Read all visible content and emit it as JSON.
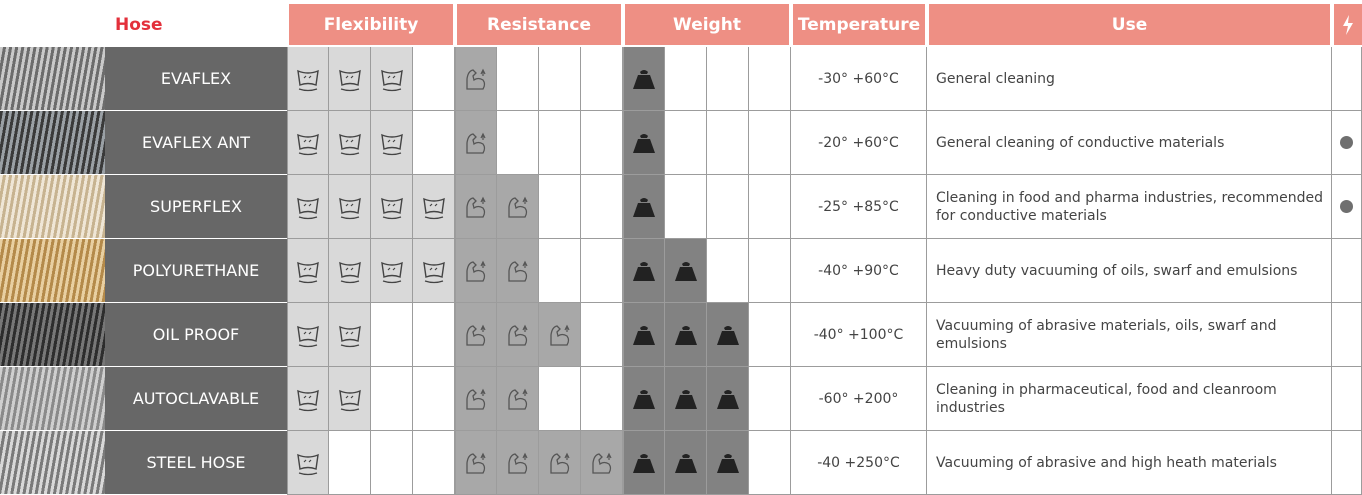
{
  "header": {
    "hose": "Hose",
    "flexibility": "Flexibility",
    "resistance": "Resistance",
    "weight": "Weight",
    "temperature": "Temperature",
    "use": "Use"
  },
  "rows": [
    {
      "name": "EVAFLEX",
      "flexibility": 3,
      "resistance": 1,
      "weight": 1,
      "temperature": "-30° +60°C",
      "use": "General cleaning",
      "conductive": false
    },
    {
      "name": "EVAFLEX ANT",
      "flexibility": 3,
      "resistance": 1,
      "weight": 1,
      "temperature": "-20° +60°C",
      "use": "General cleaning of conductive materials",
      "conductive": true
    },
    {
      "name": "SUPERFLEX",
      "flexibility": 4,
      "resistance": 2,
      "weight": 1,
      "temperature": "-25° +85°C",
      "use": "Cleaning in food and pharma industries, recommended for conductive materials",
      "conductive": true
    },
    {
      "name": "POLYURETHANE",
      "flexibility": 4,
      "resistance": 2,
      "weight": 2,
      "temperature": "-40° +90°C",
      "use": "Heavy duty vacuuming of oils, swarf and emulsions",
      "conductive": false
    },
    {
      "name": "OIL PROOF",
      "flexibility": 2,
      "resistance": 3,
      "weight": 3,
      "temperature": "-40° +100°C",
      "use": "Vacuuming of abrasive materials, oils, swarf and emulsions",
      "conductive": false
    },
    {
      "name": "AUTOCLAVABLE",
      "flexibility": 2,
      "resistance": 2,
      "weight": 3,
      "temperature": "-60° +200°",
      "use": "Cleaning in pharmaceutical, food and cleanroom industries",
      "conductive": false
    },
    {
      "name": "STEEL HOSE",
      "flexibility": 1,
      "resistance": 4,
      "weight": 3,
      "temperature": "-40 +250°C",
      "use": "Vacuuming of abrasive and high heath materials",
      "conductive": false
    }
  ]
}
